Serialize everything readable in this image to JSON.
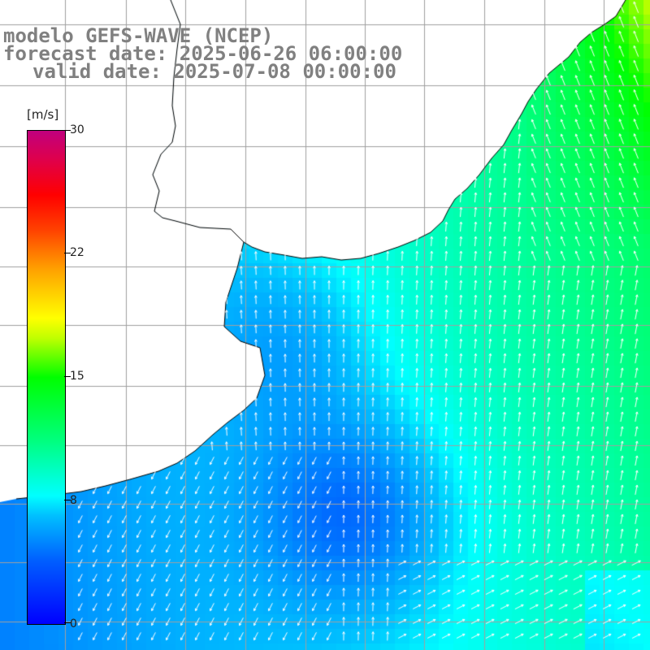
{
  "title": {
    "model": "modelo GEFS-WAVE (NCEP)",
    "forecast_date": "forecast date: 2025-06-26 06:00:00",
    "valid_date": "valid date: 2025-07-08 00:00:00"
  },
  "colorbar": {
    "unit": "[m/s]",
    "ticks": [
      "30",
      "22",
      "15",
      "8",
      "0"
    ],
    "tick_values": [
      30,
      22,
      15,
      8,
      0
    ],
    "min": 0,
    "max": 30
  },
  "colors": {
    "land": "#ffffff",
    "coast": "#000000",
    "grid": "#a0a0a0",
    "low_speed": "#0000ff",
    "mid_speed": "#00ffff",
    "high_speed": "#00ff00",
    "arrow": "#ffffff"
  },
  "map": {
    "field": "wind speed",
    "grid": true
  }
}
